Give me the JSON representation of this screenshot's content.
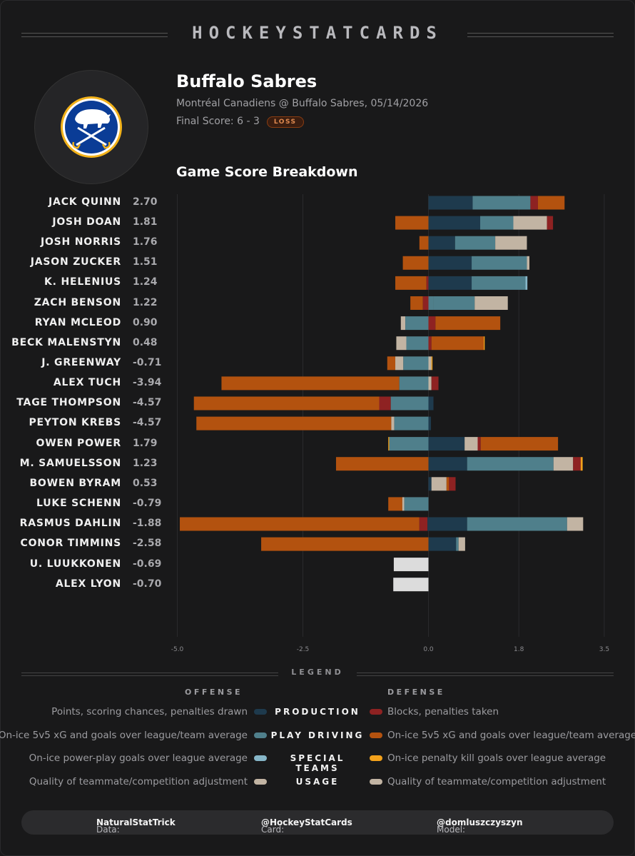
{
  "header": {
    "brand": "HOCKEYSTATCARDS",
    "team": "Buffalo Sabres",
    "matchup": "Montréal Canadiens @ Buffalo Sabres, 05/14/2026",
    "score_label": "Final Score: 6 - 3",
    "result_badge": "LOSS",
    "section_title": "Game Score Breakdown"
  },
  "colors": {
    "production_off": "#1e3a4d",
    "play_driving_off": "#4f7f8b",
    "special_teams_off": "#86b6c8",
    "usage": "#c2b4a3",
    "production_def": "#8e2222",
    "play_driving_def": "#b3520f",
    "special_teams_def": "#f2a11b",
    "goalie": "#dcdcdc"
  },
  "chart_data": {
    "type": "bar",
    "orientation": "horizontal-stacked-diverging",
    "xlim": [
      -5.0,
      3.5
    ],
    "x_ticks": [
      "-5.0",
      "-2.5",
      "0.0",
      "1.8",
      "3.5"
    ],
    "grid": true,
    "series_order": [
      "Production (offense)",
      "Play driving (offense)",
      "Special teams (offense)",
      "Usage",
      "Production (defense)",
      "Play driving (defense)",
      "Special teams (defense)"
    ],
    "players": [
      {
        "name": "JACK QUINN",
        "value": "2.70",
        "group": "forwards",
        "segments": [
          {
            "c": "production_off",
            "from": 0,
            "to": 0.88
          },
          {
            "c": "play_driving_off",
            "from": 0.88,
            "to": 2.03
          },
          {
            "c": "production_def",
            "from": 2.03,
            "to": 2.18
          },
          {
            "c": "play_driving_def",
            "from": 2.18,
            "to": 2.71
          }
        ]
      },
      {
        "name": "JOSH DOAN",
        "value": "1.81",
        "group": "forwards",
        "segments": [
          {
            "c": "play_driving_def",
            "from": -0.66,
            "to": 0
          },
          {
            "c": "production_off",
            "from": 0,
            "to": 1.03
          },
          {
            "c": "play_driving_off",
            "from": 1.03,
            "to": 1.69
          },
          {
            "c": "usage",
            "from": 1.69,
            "to": 2.36
          },
          {
            "c": "production_def",
            "from": 2.36,
            "to": 2.48
          }
        ]
      },
      {
        "name": "JOSH NORRIS",
        "value": "1.76",
        "group": "forwards",
        "segments": [
          {
            "c": "play_driving_def",
            "from": -0.18,
            "to": 0
          },
          {
            "c": "production_off",
            "from": 0,
            "to": 0.53
          },
          {
            "c": "play_driving_off",
            "from": 0.53,
            "to": 1.33
          },
          {
            "c": "usage",
            "from": 1.33,
            "to": 1.96
          }
        ]
      },
      {
        "name": "JASON ZUCKER",
        "value": "1.51",
        "group": "forwards",
        "segments": [
          {
            "c": "play_driving_def",
            "from": -0.51,
            "to": 0
          },
          {
            "c": "production_off",
            "from": 0,
            "to": 0.86
          },
          {
            "c": "play_driving_off",
            "from": 0.86,
            "to": 1.96
          },
          {
            "c": "usage",
            "from": 1.96,
            "to": 2.01
          }
        ]
      },
      {
        "name": "K. HELENIUS",
        "value": "1.24",
        "group": "forwards",
        "segments": [
          {
            "c": "play_driving_def",
            "from": -0.66,
            "to": -0.04
          },
          {
            "c": "production_def",
            "from": -0.04,
            "to": 0
          },
          {
            "c": "production_off",
            "from": 0,
            "to": 0.86
          },
          {
            "c": "play_driving_off",
            "from": 0.86,
            "to": 1.93
          },
          {
            "c": "special_teams_off",
            "from": 1.93,
            "to": 1.97
          }
        ]
      },
      {
        "name": "ZACH BENSON",
        "value": "1.22",
        "group": "forwards",
        "segments": [
          {
            "c": "play_driving_def",
            "from": -0.36,
            "to": -0.11
          },
          {
            "c": "production_def",
            "from": -0.11,
            "to": 0
          },
          {
            "c": "play_driving_off",
            "from": 0,
            "to": 0.1
          },
          {
            "c": "play_driving_off",
            "from": 0.1,
            "to": 0.92
          },
          {
            "c": "usage",
            "from": 0.92,
            "to": 1.58
          }
        ]
      },
      {
        "name": "RYAN MCLEOD",
        "value": "0.90",
        "group": "forwards",
        "segments": [
          {
            "c": "usage",
            "from": -0.55,
            "to": -0.46
          },
          {
            "c": "play_driving_off",
            "from": -0.46,
            "to": 0
          },
          {
            "c": "production_def",
            "from": 0,
            "to": 0.14
          },
          {
            "c": "play_driving_def",
            "from": 0.14,
            "to": 1.43
          }
        ]
      },
      {
        "name": "BECK MALENSTYN",
        "value": "0.48",
        "group": "forwards",
        "segments": [
          {
            "c": "usage",
            "from": -0.64,
            "to": -0.44
          },
          {
            "c": "play_driving_off",
            "from": -0.44,
            "to": 0
          },
          {
            "c": "production_def",
            "from": 0,
            "to": 0.06
          },
          {
            "c": "play_driving_def",
            "from": 0.06,
            "to": 1.1
          },
          {
            "c": "special_teams_def",
            "from": 1.1,
            "to": 1.12
          }
        ]
      },
      {
        "name": "J. GREENWAY",
        "value": "-0.71",
        "group": "forwards",
        "segments": [
          {
            "c": "play_driving_def",
            "from": -0.82,
            "to": -0.66
          },
          {
            "c": "usage",
            "from": -0.66,
            "to": -0.5
          },
          {
            "c": "play_driving_off",
            "from": -0.5,
            "to": 0
          },
          {
            "c": "usage",
            "from": 0,
            "to": 0.06
          },
          {
            "c": "special_teams_def",
            "from": 0.06,
            "to": 0.08
          }
        ]
      },
      {
        "name": "ALEX TUCH",
        "value": "-3.94",
        "group": "forwards",
        "segments": [
          {
            "c": "play_driving_def",
            "from": -4.12,
            "to": -0.58
          },
          {
            "c": "play_driving_off",
            "from": -0.58,
            "to": 0
          },
          {
            "c": "usage",
            "from": 0,
            "to": 0.06
          },
          {
            "c": "production_def",
            "from": 0.06,
            "to": 0.2
          }
        ]
      },
      {
        "name": "TAGE THOMPSON",
        "value": "-4.57",
        "group": "forwards",
        "segments": [
          {
            "c": "play_driving_def",
            "from": -4.67,
            "to": -0.98
          },
          {
            "c": "production_def",
            "from": -0.98,
            "to": -0.75
          },
          {
            "c": "play_driving_off",
            "from": -0.75,
            "to": 0
          },
          {
            "c": "production_off",
            "from": 0,
            "to": 0.1
          }
        ]
      },
      {
        "name": "PEYTON KREBS",
        "value": "-4.57",
        "group": "forwards",
        "segments": [
          {
            "c": "play_driving_def",
            "from": -4.62,
            "to": -0.74
          },
          {
            "c": "usage",
            "from": -0.74,
            "to": -0.68
          },
          {
            "c": "play_driving_off",
            "from": -0.68,
            "to": 0
          },
          {
            "c": "production_off",
            "from": 0,
            "to": 0.05
          }
        ]
      },
      {
        "name": "OWEN POWER",
        "value": "1.79",
        "group": "defense",
        "segments": [
          {
            "c": "special_teams_def",
            "from": -0.8,
            "to": -0.78
          },
          {
            "c": "play_driving_off",
            "from": -0.78,
            "to": 0
          },
          {
            "c": "production_off",
            "from": 0,
            "to": 0.72
          },
          {
            "c": "usage",
            "from": 0.72,
            "to": 0.98
          },
          {
            "c": "production_def",
            "from": 0.98,
            "to": 1.04
          },
          {
            "c": "play_driving_def",
            "from": 1.04,
            "to": 2.58
          }
        ]
      },
      {
        "name": "M. SAMUELSSON",
        "value": "1.23",
        "group": "defense",
        "segments": [
          {
            "c": "play_driving_def",
            "from": -1.84,
            "to": 0
          },
          {
            "c": "production_off",
            "from": 0,
            "to": 0.77
          },
          {
            "c": "play_driving_off",
            "from": 0.77,
            "to": 2.49
          },
          {
            "c": "usage",
            "from": 2.49,
            "to": 2.88
          },
          {
            "c": "production_def",
            "from": 2.88,
            "to": 3.03
          },
          {
            "c": "special_teams_def",
            "from": 3.03,
            "to": 3.07
          }
        ]
      },
      {
        "name": "BOWEN BYRAM",
        "value": "0.53",
        "group": "defense",
        "segments": [
          {
            "c": "production_off",
            "from": 0,
            "to": 0.06
          },
          {
            "c": "usage",
            "from": 0.06,
            "to": 0.36
          },
          {
            "c": "play_driving_def",
            "from": 0.36,
            "to": 0.41
          },
          {
            "c": "production_def",
            "from": 0.41,
            "to": 0.54
          }
        ]
      },
      {
        "name": "LUKE SCHENN",
        "value": "-0.79",
        "group": "defense",
        "segments": [
          {
            "c": "play_driving_def",
            "from": -0.8,
            "to": -0.52
          },
          {
            "c": "usage",
            "from": -0.52,
            "to": -0.48
          },
          {
            "c": "play_driving_off",
            "from": -0.48,
            "to": 0
          }
        ]
      },
      {
        "name": "RASMUS DAHLIN",
        "value": "-1.88",
        "group": "defense",
        "segments": [
          {
            "c": "play_driving_def",
            "from": -4.95,
            "to": -0.18
          },
          {
            "c": "production_def",
            "from": -0.18,
            "to": -0.02
          },
          {
            "c": "production_off",
            "from": -0.02,
            "to": 0.77
          },
          {
            "c": "play_driving_off",
            "from": 0.77,
            "to": 2.76
          },
          {
            "c": "usage",
            "from": 2.76,
            "to": 3.08
          }
        ]
      },
      {
        "name": "CONOR TIMMINS",
        "value": "-2.58",
        "group": "defense",
        "segments": [
          {
            "c": "play_driving_def",
            "from": -3.33,
            "to": 0
          },
          {
            "c": "production_off",
            "from": 0,
            "to": 0.55
          },
          {
            "c": "play_driving_off",
            "from": 0.55,
            "to": 0.6
          },
          {
            "c": "usage",
            "from": 0.6,
            "to": 0.73
          }
        ]
      },
      {
        "name": "U. LUUKKONEN",
        "value": "-0.69",
        "group": "goalies",
        "segments": [
          {
            "c": "goalie",
            "from": -0.69,
            "to": 0
          }
        ]
      },
      {
        "name": "ALEX LYON",
        "value": "-0.70",
        "group": "goalies",
        "segments": [
          {
            "c": "goalie",
            "from": -0.7,
            "to": 0
          }
        ]
      }
    ]
  },
  "legend": {
    "title": "LEGEND",
    "offense_head": "OFFENSE",
    "defense_head": "DEFENSE",
    "rows": [
      {
        "category": "PRODUCTION",
        "offense": "Points, scoring chances, penalties drawn",
        "defense": "Blocks, penalties taken",
        "off_color": "#1e3a4d",
        "def_color": "#8e2222"
      },
      {
        "category": "PLAY DRIVING",
        "offense": "On-ice 5v5 xG and goals over league/team average",
        "defense": "On-ice 5v5 xG and goals over league/team average",
        "off_color": "#4f7f8b",
        "def_color": "#b3520f"
      },
      {
        "category": "SPECIAL TEAMS",
        "offense": "On-ice power-play goals over league average",
        "defense": "On-ice penalty kill goals over league average",
        "off_color": "#86b6c8",
        "def_color": "#f2a11b"
      },
      {
        "category": "USAGE",
        "offense": "Quality of teammate/competition adjustment",
        "defense": "Quality of teammate/competition adjustment",
        "off_color": "#c2b4a3",
        "def_color": "#c2b4a3"
      }
    ]
  },
  "footer": {
    "data_label": "Data: ",
    "data_value": "NaturalStatTrick",
    "card_label": "Card: ",
    "card_value": "@HockeyStatCards",
    "model_label": "Model: ",
    "model_value": "@domluszczyszyn"
  }
}
